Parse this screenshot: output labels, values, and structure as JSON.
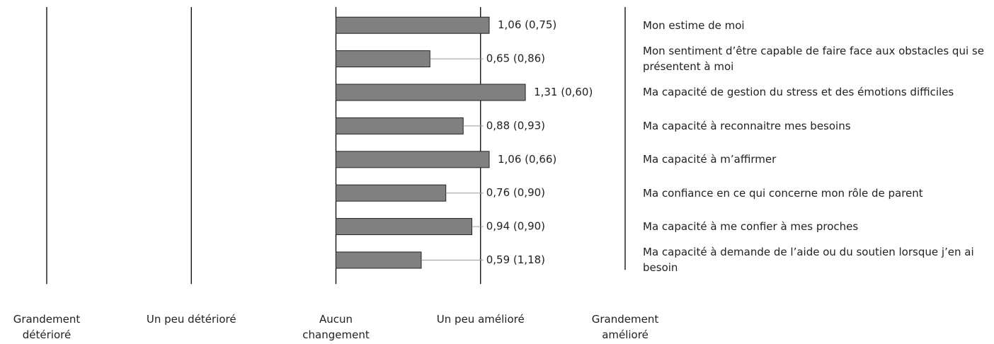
{
  "chart_data": {
    "type": "bar",
    "orientation": "horizontal",
    "categories": [
      "Mon estime de moi",
      "Mon sentiment d’être capable de faire face aux obstacles qui se présentent à moi",
      "Ma capacité de gestion du stress et des émotions difficiles",
      "Ma capacité à reconnaitre mes besoins",
      "Ma capacité à m’affirmer",
      "Ma confiance en ce qui concerne mon rôle de parent",
      "Ma capacité à me confier à mes proches",
      "Ma capacité à demande de l’aide ou du soutien lorsque j’en ai besoin"
    ],
    "values": [
      1.06,
      0.65,
      1.31,
      0.88,
      1.06,
      0.76,
      0.94,
      0.59
    ],
    "value_labels": [
      "1,06 (0,75)",
      "0,65 (0,86)",
      "1,31 (0,60)",
      "0,88 (0,93)",
      "1,06 (0,66)",
      "0,76 (0,90)",
      "0,94 (0,90)",
      "0,59 (1,18)"
    ],
    "color": "#808080",
    "xlim": [
      -2,
      2
    ],
    "xticks": [
      {
        "value": -2,
        "label": "Grandement détérioré"
      },
      {
        "value": -1,
        "label": "Un peu détérioré"
      },
      {
        "value": 0,
        "label": "Aucun changement"
      },
      {
        "value": 1,
        "label": "Un peu amélioré"
      },
      {
        "value": 2,
        "label": "Grandement amélioré"
      }
    ],
    "grid": true
  }
}
